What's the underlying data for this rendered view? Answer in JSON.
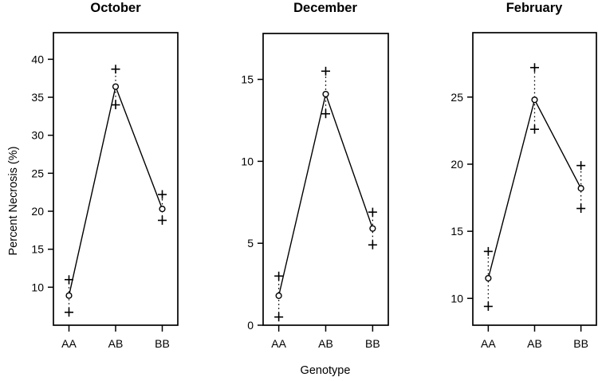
{
  "figure": {
    "background": "#ffffff",
    "foreground": "#000000",
    "xlabel": "Genotype",
    "ylabel": "Percent Necrosis (%)"
  },
  "chart_data": [
    {
      "type": "line",
      "title": "October",
      "categories": [
        "AA",
        "AB",
        "BB"
      ],
      "series": [
        {
          "name": "mean",
          "marker": "circle",
          "values": [
            8.9,
            36.4,
            20.3
          ],
          "line": "solid"
        },
        {
          "name": "upper-error",
          "marker": "plus",
          "values": [
            11.0,
            38.7,
            22.2
          ],
          "line": "dotted-to-mean"
        },
        {
          "name": "lower-error",
          "marker": "plus",
          "values": [
            6.7,
            34.0,
            18.8
          ],
          "line": "dotted-to-mean"
        }
      ],
      "ylim": [
        5.0,
        43.5
      ],
      "yticks": [
        10,
        15,
        20,
        25,
        30,
        35,
        40
      ],
      "grid": false,
      "legend": null
    },
    {
      "type": "line",
      "title": "December",
      "categories": [
        "AA",
        "AB",
        "BB"
      ],
      "series": [
        {
          "name": "mean",
          "marker": "circle",
          "values": [
            1.8,
            14.1,
            5.9
          ],
          "line": "solid"
        },
        {
          "name": "upper-error",
          "marker": "plus",
          "values": [
            3.0,
            15.5,
            6.9
          ],
          "line": "dotted-to-mean"
        },
        {
          "name": "lower-error",
          "marker": "plus",
          "values": [
            0.5,
            12.9,
            4.9
          ],
          "line": "dotted-to-mean"
        }
      ],
      "ylim": [
        0,
        17.8
      ],
      "yticks": [
        0,
        5,
        10,
        15
      ],
      "grid": false,
      "legend": null
    },
    {
      "type": "line",
      "title": "February",
      "categories": [
        "AA",
        "AB",
        "BB"
      ],
      "series": [
        {
          "name": "mean",
          "marker": "circle",
          "values": [
            11.5,
            24.8,
            18.2
          ],
          "line": "solid"
        },
        {
          "name": "upper-error",
          "marker": "plus",
          "values": [
            13.5,
            27.2,
            19.9
          ],
          "line": "dotted-to-mean"
        },
        {
          "name": "lower-error",
          "marker": "plus",
          "values": [
            9.4,
            22.6,
            16.7
          ],
          "line": "dotted-to-mean"
        }
      ],
      "ylim": [
        8.0,
        29.8
      ],
      "yticks": [
        10,
        15,
        20,
        25
      ],
      "grid": false,
      "legend": null
    }
  ]
}
